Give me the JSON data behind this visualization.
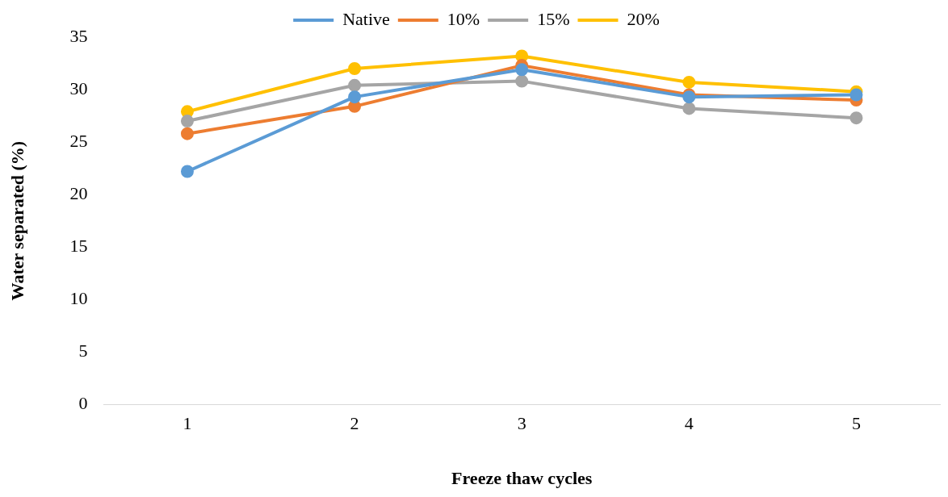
{
  "chart_data": {
    "type": "line",
    "xlabel": "Freeze thaw cycles",
    "ylabel": "Water separated (%)",
    "categories": [
      "1",
      "2",
      "3",
      "4",
      "5"
    ],
    "series": [
      {
        "name": "Native",
        "color": "#5b9bd5",
        "values": [
          22.2,
          29.3,
          31.9,
          29.3,
          29.5
        ]
      },
      {
        "name": "10%",
        "color": "#ed7d31",
        "values": [
          25.8,
          28.4,
          32.3,
          29.5,
          29.0
        ]
      },
      {
        "name": "15%",
        "color": "#a5a5a5",
        "values": [
          27.0,
          30.4,
          30.8,
          28.2,
          27.3
        ]
      },
      {
        "name": "20%",
        "color": "#ffc000",
        "values": [
          27.9,
          32.0,
          33.2,
          30.7,
          29.8
        ]
      }
    ],
    "ylim": [
      0,
      35
    ],
    "yticks": [
      0,
      5,
      10,
      15,
      20,
      25,
      30,
      35
    ],
    "grid": false,
    "legend": "top",
    "marker": "circle",
    "line_style": "solid"
  }
}
